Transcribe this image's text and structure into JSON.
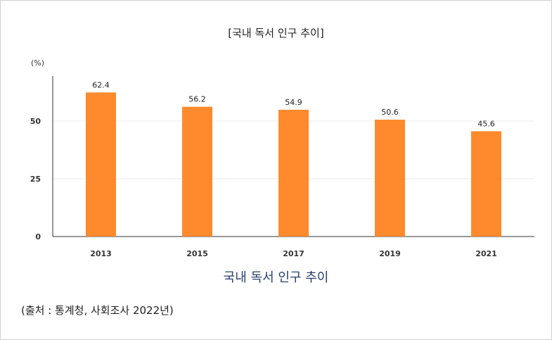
{
  "chart_data": {
    "type": "bar",
    "title": "[국내 독서 인구 추이]",
    "ylabel": "(%)",
    "xlabel": "",
    "categories": [
      "2013",
      "2015",
      "2017",
      "2019",
      "2021"
    ],
    "values": [
      62.4,
      56.2,
      54.9,
      50.6,
      45.6
    ],
    "data_labels": [
      "62.4",
      "56.2",
      "54.9",
      "50.6",
      "45.6"
    ],
    "ylim": [
      0,
      75
    ],
    "yticks": [
      0,
      25,
      50
    ],
    "ytick_labels": [
      "0",
      "25",
      "50"
    ],
    "grid": true,
    "bar_color": "#ff8a2e"
  },
  "caption": "국내 독서 인구 추이",
  "source": "(출처 : 통계청, 사회조사 2022년)"
}
